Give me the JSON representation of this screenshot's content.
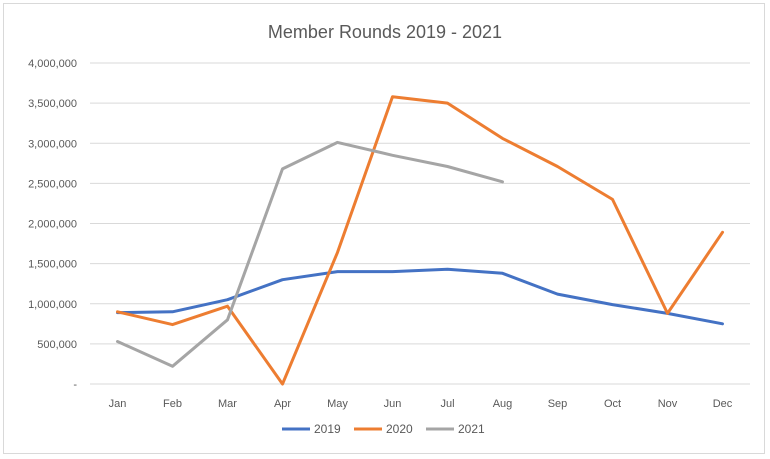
{
  "chart_data": {
    "type": "line",
    "title": "Member Rounds 2019 - 2021",
    "xlabel": "",
    "ylabel": "",
    "categories": [
      "Jan",
      "Feb",
      "Mar",
      "Apr",
      "May",
      "Jun",
      "Jul",
      "Aug",
      "Sep",
      "Oct",
      "Nov",
      "Dec"
    ],
    "y_tick_values": [
      0,
      500000,
      1000000,
      1500000,
      2000000,
      2500000,
      3000000,
      3500000,
      4000000
    ],
    "y_tick_labels": [
      "-",
      "500,000",
      "1,000,000",
      "1,500,000",
      "2,000,000",
      "2,500,000",
      "3,000,000",
      "3,500,000",
      "4,000,000"
    ],
    "ylim": [
      0,
      4000000
    ],
    "grid": "horizontal",
    "legend_position": "bottom",
    "series": [
      {
        "name": "2019",
        "color": "#4472c4",
        "values": [
          890000,
          900000,
          1050000,
          1300000,
          1400000,
          1400000,
          1430000,
          1380000,
          1120000,
          990000,
          880000,
          750000
        ]
      },
      {
        "name": "2020",
        "color": "#ed7d31",
        "values": [
          900000,
          740000,
          970000,
          0,
          1640000,
          3580000,
          3500000,
          3060000,
          2710000,
          2300000,
          880000,
          1890000
        ]
      },
      {
        "name": "2021",
        "color": "#a5a5a5",
        "values": [
          530000,
          220000,
          800000,
          2680000,
          3010000,
          2850000,
          2710000,
          2520000,
          null,
          null,
          null,
          null
        ]
      }
    ]
  }
}
